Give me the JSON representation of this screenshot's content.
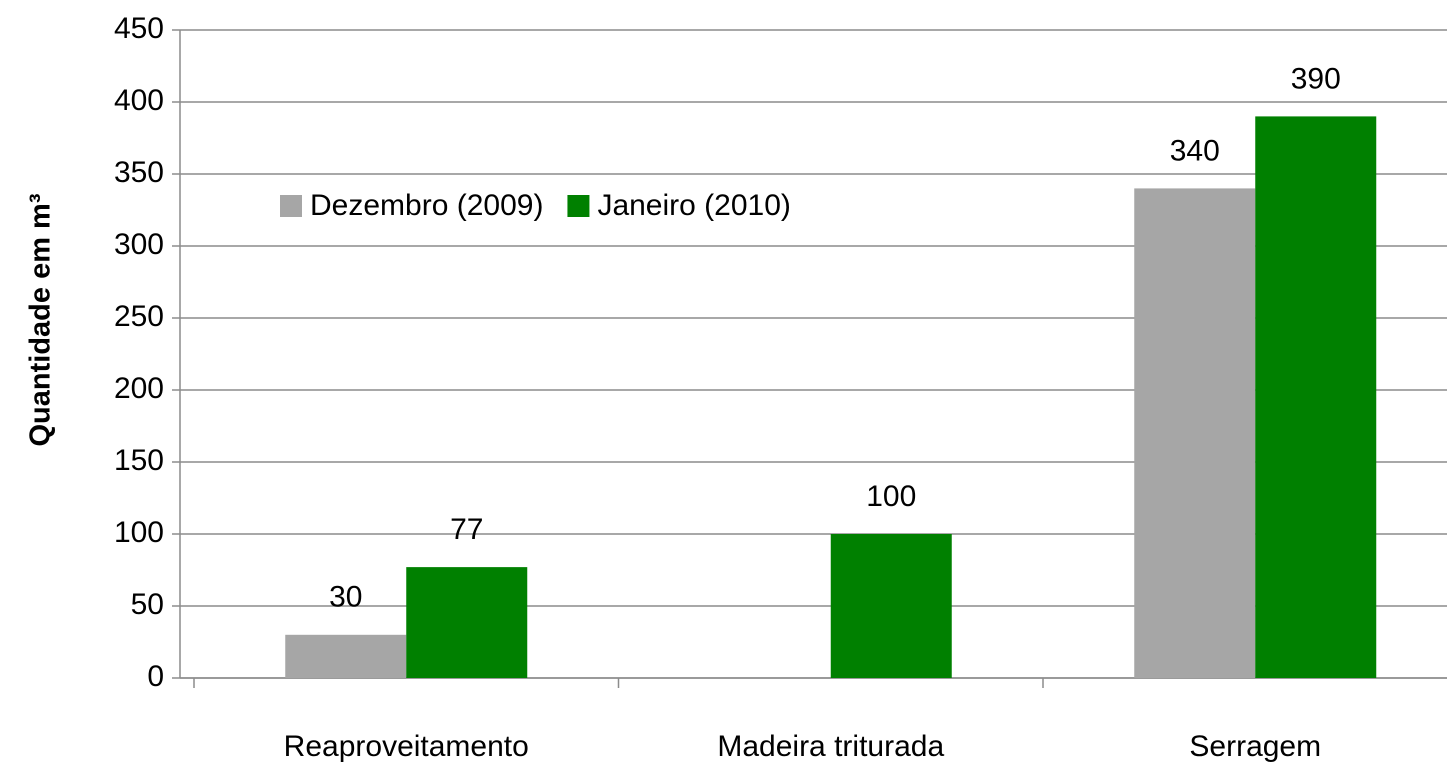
{
  "chart_data": {
    "type": "bar",
    "y_label": "Quantidade em m³",
    "categories": [
      "Reaproveitamento",
      "Madeira triturada",
      "Serragem"
    ],
    "series": [
      {
        "name": "Dezembro (2009)",
        "color": "#a6a6a6",
        "values": [
          30,
          null,
          340
        ]
      },
      {
        "name": "Janeiro (2010)",
        "color": "#008000",
        "values": [
          77,
          100,
          390
        ]
      }
    ],
    "ylim": [
      0,
      450
    ],
    "yticks": [
      0,
      50,
      100,
      150,
      200,
      250,
      300,
      350,
      400,
      450
    ],
    "grid": true,
    "legend": "top-left"
  }
}
